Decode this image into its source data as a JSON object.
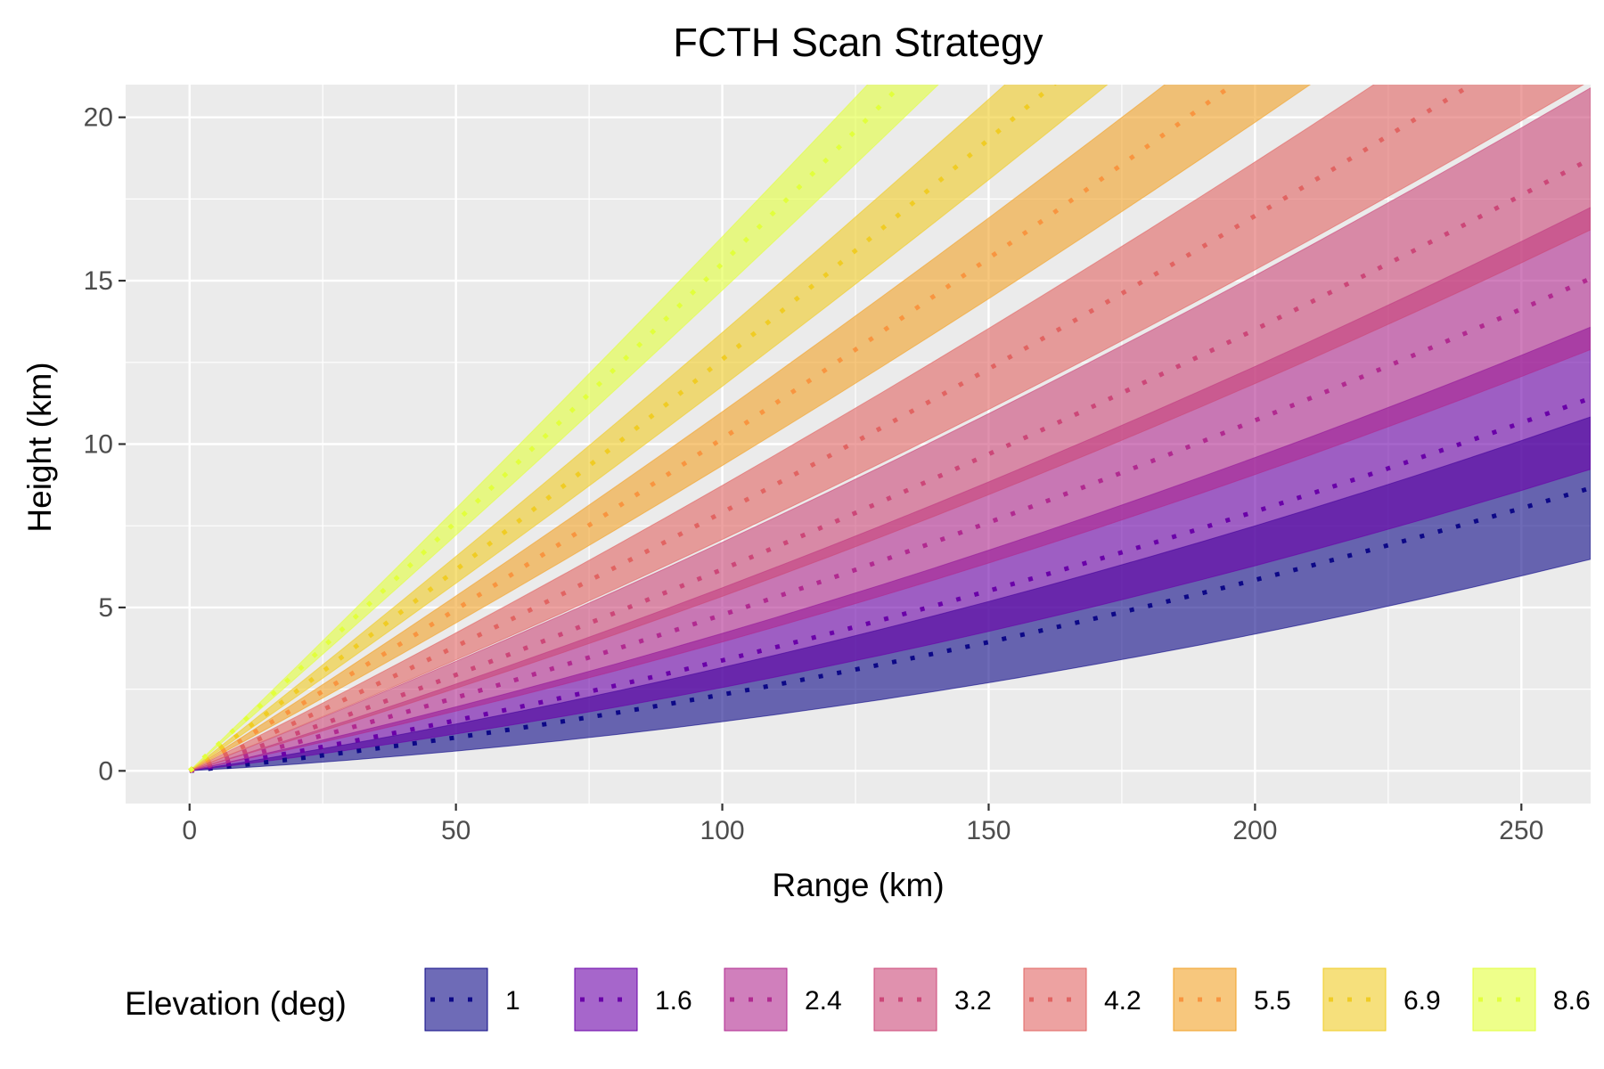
{
  "chart_data": {
    "type": "area",
    "title": "FCTH Scan Strategy",
    "xlabel": "Range (km)",
    "ylabel": "Height (km)",
    "xlim": [
      -12,
      263
    ],
    "ylim": [
      -1,
      21
    ],
    "x_ticks": [
      0,
      50,
      100,
      150,
      200,
      250
    ],
    "y_ticks": [
      0,
      5,
      10,
      15,
      20
    ],
    "grid": true,
    "panel_background": "#EBEBEB",
    "legend": {
      "title": "Elevation (deg)",
      "position": "bottom"
    },
    "beam_width_deg": 0.95,
    "earth_effective_radius_km": 8500,
    "x": [
      0,
      10,
      20,
      30,
      40,
      50,
      60,
      70,
      80,
      90,
      100,
      110,
      120,
      130,
      140,
      150,
      160,
      170,
      180,
      190,
      200,
      210,
      220,
      230,
      240,
      250,
      263
    ],
    "series": [
      {
        "name": "1",
        "elevation": 1.0,
        "fill": "#0D0887",
        "line": "#0D0887"
      },
      {
        "name": "1.6",
        "elevation": 1.6,
        "fill": "#6A00A8",
        "line": "#6A00A8"
      },
      {
        "name": "2.4",
        "elevation": 2.4,
        "fill": "#B12A90",
        "line": "#B12A90"
      },
      {
        "name": "3.2",
        "elevation": 3.2,
        "fill": "#CC4778",
        "line": "#CC4778"
      },
      {
        "name": "4.2",
        "elevation": 4.2,
        "fill": "#E16462",
        "line": "#E16462"
      },
      {
        "name": "5.5",
        "elevation": 5.5,
        "fill": "#F1A226",
        "line": "#F89540"
      },
      {
        "name": "6.9",
        "elevation": 6.9,
        "fill": "#F0CC24",
        "line": "#F0CC24"
      },
      {
        "name": "8.6",
        "elevation": 8.6,
        "fill": "#E2FF3C",
        "line": "#E2FF3C"
      }
    ]
  }
}
